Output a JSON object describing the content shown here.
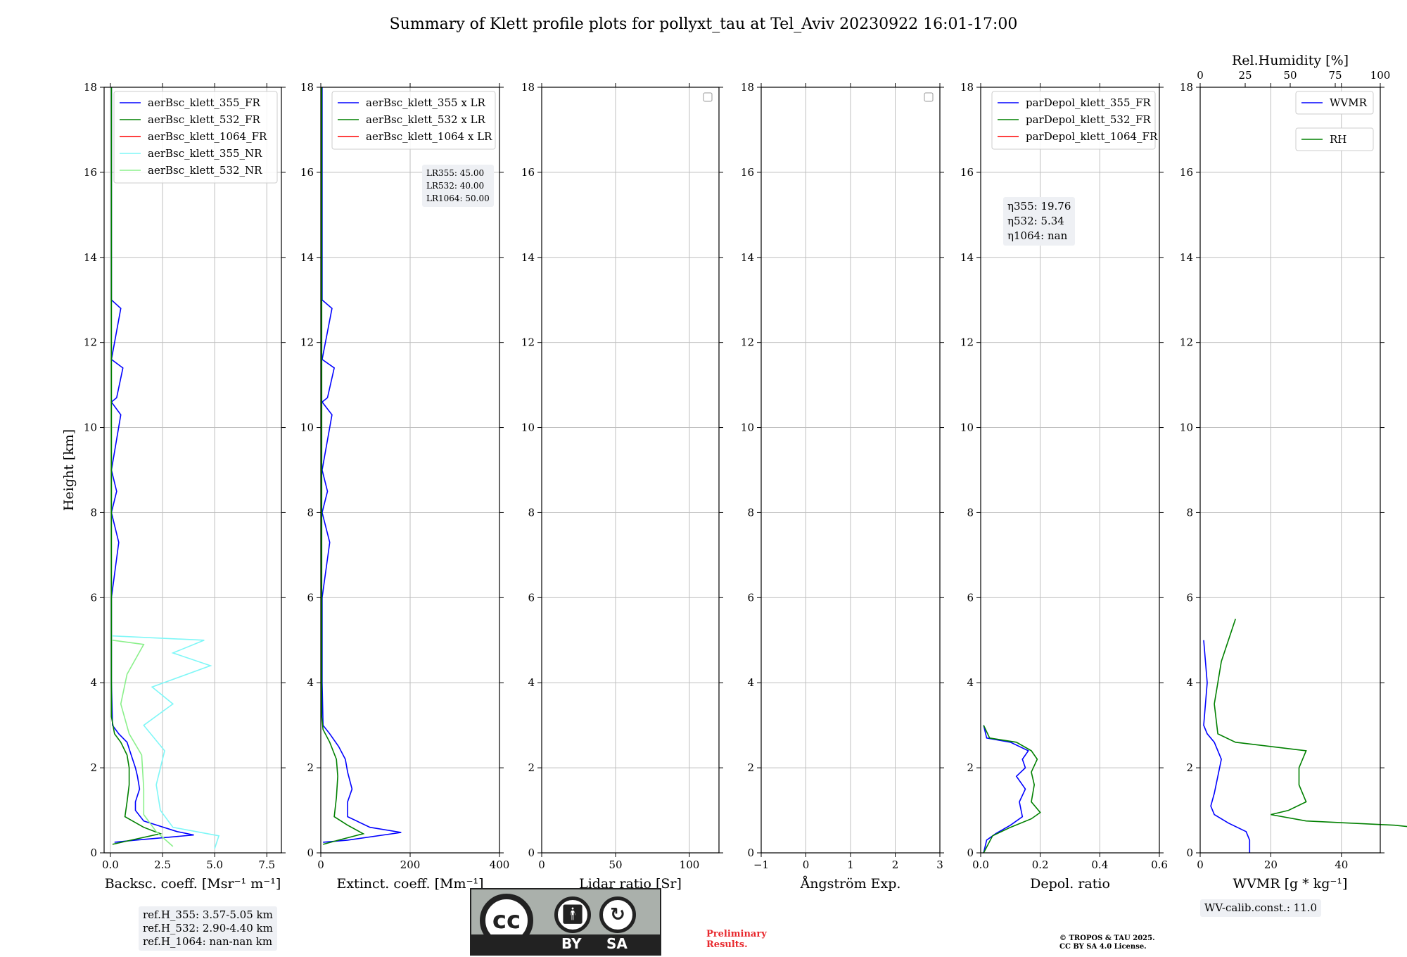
{
  "title": "Summary of Klett profile plots for pollyxt_tau at Tel_Aviv 20230922 16:01-17:00",
  "colors": {
    "ch355": "#0000ff",
    "ch532": "#008000",
    "ch1064": "#ff0000",
    "nr355": "#7ff7f7",
    "nr532": "#8bf08b",
    "grid": "#bfbfbf",
    "box": "#eef0f4"
  },
  "chart_data": [
    {
      "type": "line",
      "id": "backscatter",
      "xlabel": "Backsc. coeff. [Msr⁻¹ m⁻¹]",
      "ylabel": "Height [km]",
      "xlim": [
        -0.3,
        8.2
      ],
      "ylim": [
        0,
        18
      ],
      "xticks": [
        0,
        2.5,
        5.0,
        7.5
      ],
      "xticklabels": [
        "0.0",
        "2.5",
        "5.0",
        "7.5"
      ],
      "yticks": [
        0,
        2,
        4,
        6,
        8,
        10,
        12,
        14,
        16,
        18
      ],
      "grid": true,
      "legend": [
        "aerBsc_klett_355_FR",
        "aerBsc_klett_532_FR",
        "aerBsc_klett_1064_FR",
        "aerBsc_klett_355_NR",
        "aerBsc_klett_532_NR"
      ],
      "legend_placement": "top-right",
      "series": [
        {
          "name": "aerBsc_klett_355_FR",
          "color": "ch355",
          "points": [
            [
              0.2,
              0.25
            ],
            [
              1.2,
              0.3
            ],
            [
              4.0,
              0.42
            ],
            [
              3.2,
              0.5
            ],
            [
              1.6,
              0.75
            ],
            [
              1.2,
              1.0
            ],
            [
              1.2,
              1.2
            ],
            [
              1.4,
              1.5
            ],
            [
              1.3,
              1.8
            ],
            [
              1.2,
              2.0
            ],
            [
              1.0,
              2.3
            ],
            [
              0.8,
              2.6
            ],
            [
              0.4,
              2.8
            ],
            [
              0.1,
              3.0
            ],
            [
              0.05,
              4.0
            ],
            [
              0.05,
              6.0
            ],
            [
              0.4,
              7.3
            ],
            [
              0.05,
              8.0
            ],
            [
              0.3,
              8.5
            ],
            [
              0.05,
              9.0
            ],
            [
              0.5,
              10.3
            ],
            [
              0.05,
              10.6
            ],
            [
              0.3,
              10.7
            ],
            [
              0.6,
              11.4
            ],
            [
              0.05,
              11.6
            ],
            [
              0.5,
              12.8
            ],
            [
              0.05,
              13.0
            ],
            [
              0.05,
              18.0
            ]
          ]
        },
        {
          "name": "aerBsc_klett_532_FR",
          "color": "ch532",
          "points": [
            [
              0.1,
              0.2
            ],
            [
              1.0,
              0.3
            ],
            [
              2.4,
              0.45
            ],
            [
              1.6,
              0.6
            ],
            [
              0.7,
              0.85
            ],
            [
              0.8,
              1.2
            ],
            [
              0.9,
              1.6
            ],
            [
              0.9,
              2.0
            ],
            [
              0.8,
              2.3
            ],
            [
              0.5,
              2.6
            ],
            [
              0.2,
              2.8
            ],
            [
              0.05,
              3.2
            ],
            [
              0.05,
              18.0
            ]
          ]
        },
        {
          "name": "aerBsc_klett_1064_FR",
          "color": "ch1064",
          "points": []
        },
        {
          "name": "aerBsc_klett_355_NR",
          "color": "nr355",
          "points": [
            [
              5.0,
              0.1
            ],
            [
              5.2,
              0.4
            ],
            [
              3.0,
              0.6
            ],
            [
              2.4,
              1.0
            ],
            [
              2.2,
              1.6
            ],
            [
              2.6,
              2.4
            ],
            [
              1.6,
              3.0
            ],
            [
              3.0,
              3.5
            ],
            [
              2.0,
              3.9
            ],
            [
              4.8,
              4.4
            ],
            [
              3.0,
              4.7
            ],
            [
              4.5,
              5.0
            ],
            [
              0.1,
              5.1
            ]
          ]
        },
        {
          "name": "aerBsc_klett_532_NR",
          "color": "nr532",
          "points": [
            [
              3.0,
              0.15
            ],
            [
              2.2,
              0.5
            ],
            [
              1.6,
              0.9
            ],
            [
              1.6,
              1.5
            ],
            [
              1.5,
              2.3
            ],
            [
              0.9,
              2.8
            ],
            [
              0.5,
              3.5
            ],
            [
              0.8,
              4.2
            ],
            [
              1.6,
              4.9
            ],
            [
              0.1,
              5.0
            ]
          ]
        }
      ],
      "annotation": [
        "ref.H_355: 3.57-5.05 km",
        "ref.H_532: 2.90-4.40 km",
        "ref.H_1064: nan-nan km"
      ]
    },
    {
      "type": "line",
      "id": "extinction",
      "xlabel": "Extinct. coeff. [Mm⁻¹]",
      "xlim": [
        0,
        400
      ],
      "ylim": [
        0,
        18
      ],
      "xticks": [
        0,
        200,
        400
      ],
      "xticklabels": [
        "0",
        "200",
        "400"
      ],
      "yticks": [
        0,
        2,
        4,
        6,
        8,
        10,
        12,
        14,
        16,
        18
      ],
      "grid": true,
      "legend": [
        "aerBsc_klett_355 x LR",
        "aerBsc_klett_532 x LR",
        "aerBsc_klett_1064 x LR"
      ],
      "legend_placement": "top-right",
      "series": [
        {
          "name": "aerBsc_klett_355 x LR",
          "color": "ch355",
          "points": [
            [
              5,
              0.25
            ],
            [
              60,
              0.3
            ],
            [
              180,
              0.48
            ],
            [
              110,
              0.6
            ],
            [
              60,
              0.85
            ],
            [
              60,
              1.2
            ],
            [
              70,
              1.5
            ],
            [
              60,
              1.9
            ],
            [
              55,
              2.2
            ],
            [
              40,
              2.5
            ],
            [
              20,
              2.8
            ],
            [
              5,
              3.0
            ],
            [
              3,
              4.0
            ],
            [
              3,
              6.0
            ],
            [
              20,
              7.3
            ],
            [
              3,
              8.0
            ],
            [
              15,
              8.5
            ],
            [
              3,
              9.0
            ],
            [
              25,
              10.3
            ],
            [
              3,
              10.6
            ],
            [
              15,
              10.7
            ],
            [
              30,
              11.4
            ],
            [
              3,
              11.6
            ],
            [
              25,
              12.8
            ],
            [
              3,
              13.0
            ],
            [
              3,
              18.0
            ]
          ]
        },
        {
          "name": "aerBsc_klett_532 x LR",
          "color": "ch532",
          "points": [
            [
              5,
              0.2
            ],
            [
              40,
              0.3
            ],
            [
              95,
              0.45
            ],
            [
              60,
              0.65
            ],
            [
              30,
              0.85
            ],
            [
              35,
              1.3
            ],
            [
              38,
              1.8
            ],
            [
              35,
              2.2
            ],
            [
              20,
              2.6
            ],
            [
              5,
              2.9
            ],
            [
              2,
              3.2
            ],
            [
              2,
              18.0
            ]
          ]
        },
        {
          "name": "aerBsc_klett_1064 x LR",
          "color": "ch1064",
          "points": []
        }
      ],
      "annotation": [
        "LR355: 45.00",
        "LR532: 40.00",
        "LR1064: 50.00"
      ]
    },
    {
      "type": "line",
      "id": "lidar-ratio",
      "xlabel": "Lidar ratio [Sr]",
      "xlim": [
        0,
        120
      ],
      "ylim": [
        0,
        18
      ],
      "xticks": [
        0,
        50,
        100
      ],
      "xticklabels": [
        "0",
        "50",
        "100"
      ],
      "yticks": [
        0,
        2,
        4,
        6,
        8,
        10,
        12,
        14,
        16,
        18
      ],
      "grid": true,
      "legend": [],
      "legend_placement": "top-right",
      "series": []
    },
    {
      "type": "line",
      "id": "angstrom",
      "xlabel": "Ångström Exp.",
      "xlim": [
        -1,
        3
      ],
      "ylim": [
        0,
        18
      ],
      "xticks": [
        -1,
        0,
        1,
        2,
        3
      ],
      "xticklabels": [
        "−1",
        "0",
        "1",
        "2",
        "3"
      ],
      "yticks": [
        0,
        2,
        4,
        6,
        8,
        10,
        12,
        14,
        16,
        18
      ],
      "grid": true,
      "legend": [],
      "legend_placement": "top-right",
      "series": []
    },
    {
      "type": "line",
      "id": "depol",
      "xlabel": "Depol. ratio",
      "xlim": [
        0,
        0.6
      ],
      "ylim": [
        0,
        18
      ],
      "xticks": [
        0,
        0.2,
        0.4,
        0.6
      ],
      "xticklabels": [
        "0.0",
        "0.2",
        "0.4",
        "0.6"
      ],
      "yticks": [
        0,
        2,
        4,
        6,
        8,
        10,
        12,
        14,
        16,
        18
      ],
      "grid": true,
      "legend": [
        "parDepol_klett_355_FR",
        "parDepol_klett_532_FR",
        "parDepol_klett_1064_FR"
      ],
      "legend_placement": "top-right",
      "series": [
        {
          "name": "parDepol_klett_355_FR",
          "color": "ch355",
          "points": [
            [
              0.01,
              0.0
            ],
            [
              0.02,
              0.3
            ],
            [
              0.05,
              0.45
            ],
            [
              0.1,
              0.65
            ],
            [
              0.14,
              0.85
            ],
            [
              0.13,
              1.2
            ],
            [
              0.15,
              1.5
            ],
            [
              0.12,
              1.8
            ],
            [
              0.15,
              2.0
            ],
            [
              0.14,
              2.2
            ],
            [
              0.16,
              2.4
            ],
            [
              0.1,
              2.6
            ],
            [
              0.02,
              2.7
            ],
            [
              0.01,
              3.0
            ]
          ]
        },
        {
          "name": "parDepol_klett_532_FR",
          "color": "ch532",
          "points": [
            [
              0.01,
              0.0
            ],
            [
              0.04,
              0.4
            ],
            [
              0.1,
              0.6
            ],
            [
              0.17,
              0.8
            ],
            [
              0.2,
              0.95
            ],
            [
              0.17,
              1.2
            ],
            [
              0.18,
              1.6
            ],
            [
              0.17,
              1.9
            ],
            [
              0.19,
              2.2
            ],
            [
              0.17,
              2.4
            ],
            [
              0.12,
              2.6
            ],
            [
              0.03,
              2.7
            ],
            [
              0.01,
              3.0
            ]
          ]
        },
        {
          "name": "parDepol_klett_1064_FR",
          "color": "ch1064",
          "points": []
        }
      ],
      "annotation": [
        "η355: 19.76",
        "η532: 5.34",
        "η1064: nan"
      ]
    },
    {
      "type": "line",
      "id": "wvmr",
      "xlabel": "WVMR [g * kg⁻¹]",
      "x2label": "Rel.Humidity [%]",
      "xlim": [
        0,
        51
      ],
      "ylim": [
        0,
        18
      ],
      "xticks": [
        0,
        20,
        40
      ],
      "xticklabels": [
        "0",
        "20",
        "40"
      ],
      "x2lim": [
        0,
        100
      ],
      "x2ticks": [
        0,
        25,
        50,
        75,
        100
      ],
      "x2ticklabels": [
        "0",
        "25",
        "50",
        "75",
        "100"
      ],
      "yticks": [
        0,
        2,
        4,
        6,
        8,
        10,
        12,
        14,
        16,
        18
      ],
      "grid": true,
      "legend": [
        "WVMR",
        "RH"
      ],
      "legend_placement": "top-right",
      "series": [
        {
          "name": "WVMR",
          "color": "ch355",
          "points": [
            [
              14,
              0.0
            ],
            [
              14,
              0.3
            ],
            [
              13,
              0.5
            ],
            [
              8,
              0.7
            ],
            [
              4,
              0.9
            ],
            [
              3,
              1.1
            ],
            [
              4,
              1.4
            ],
            [
              5,
              1.8
            ],
            [
              6,
              2.2
            ],
            [
              4,
              2.6
            ],
            [
              2,
              2.8
            ],
            [
              1,
              3.0
            ],
            [
              2,
              4.0
            ],
            [
              1,
              5.0
            ]
          ]
        },
        {
          "name": "RH",
          "color": "ch532",
          "points": [
            [
              60,
              0.0
            ],
            [
              70,
              0.4
            ],
            [
              72,
              0.5
            ],
            [
              55,
              0.65
            ],
            [
              30,
              0.75
            ],
            [
              20,
              0.9
            ],
            [
              25,
              1.0
            ],
            [
              30,
              1.2
            ],
            [
              28,
              1.6
            ],
            [
              28,
              2.0
            ],
            [
              30,
              2.4
            ],
            [
              10,
              2.6
            ],
            [
              5,
              2.8
            ],
            [
              4,
              3.5
            ],
            [
              6,
              4.5
            ],
            [
              10,
              5.5
            ]
          ]
        }
      ],
      "annotation": [
        "WV-calib.const.: 11.0"
      ]
    }
  ],
  "cc_badge": {
    "by": "BY",
    "sa": "SA",
    "cc": "cc"
  },
  "preliminary": [
    "Preliminary",
    "Results."
  ],
  "copyright": [
    "© TROPOS & TAU 2025.",
    "CC BY SA 4.0 License."
  ]
}
